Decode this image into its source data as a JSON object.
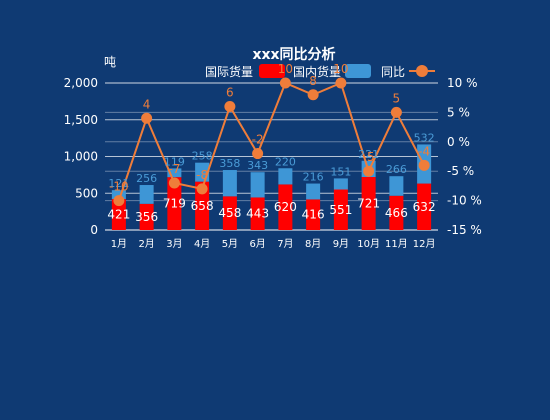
{
  "chart_data": {
    "type": "bar",
    "title": "xxx同比分析",
    "y_unit": "吨",
    "categories": [
      "1月",
      "2月",
      "3月",
      "4月",
      "5月",
      "6月",
      "7月",
      "8月",
      "9月",
      "10月",
      "11月",
      "12月"
    ],
    "series": [
      {
        "name": "国际货量",
        "type": "bar",
        "stack": "total",
        "color": "#ff0000",
        "values": [
          421,
          356,
          719,
          658,
          458,
          443,
          620,
          416,
          551,
          721,
          466,
          632
        ]
      },
      {
        "name": "国内货量",
        "type": "bar",
        "stack": "total",
        "color": "#3e96d6",
        "values": [
          121,
          256,
          119,
          258,
          358,
          343,
          220,
          216,
          151,
          221,
          266,
          532
        ]
      },
      {
        "name": "同比",
        "type": "line",
        "axis": "right",
        "color": "#ef7d3a",
        "values": [
          -10,
          4,
          -7,
          -8,
          6,
          -2,
          10,
          8,
          10,
          -5,
          5,
          -4
        ]
      }
    ],
    "y_left": {
      "min": 0,
      "max": 2000,
      "ticks": [
        "0",
        "500",
        "1,000",
        "1,500",
        "2,000"
      ]
    },
    "y_right": {
      "min": -15,
      "max": 10,
      "ticks": [
        "-15 %",
        "-10 %",
        "-5 %",
        "0 %",
        "5 %",
        "10 %"
      ]
    },
    "legend_position": "top-center",
    "grid": true
  }
}
